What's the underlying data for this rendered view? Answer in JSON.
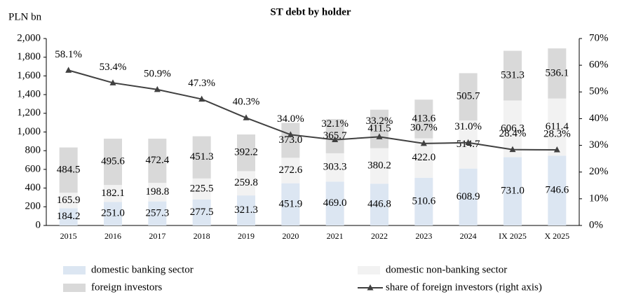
{
  "chart_data": {
    "type": "bar",
    "stacked": true,
    "title": "ST debt by holder",
    "y_label": "PLN bn",
    "categories": [
      "2015",
      "2016",
      "2017",
      "2018",
      "2019",
      "2020",
      "2021",
      "2022",
      "2023",
      "2024",
      "IX 2025",
      "X 2025"
    ],
    "series": [
      {
        "name": "domestic banking sector",
        "type": "bar",
        "color": "#dce6f2",
        "values": [
          184.2,
          251.0,
          257.3,
          277.5,
          321.3,
          451.9,
          469.0,
          446.8,
          510.6,
          608.9,
          731.0,
          746.6
        ],
        "value_labels": [
          "184.2",
          "251.0",
          "257.3",
          "277.5",
          "321.3",
          "451.9",
          "469.0",
          "446.8",
          "510.6",
          "608.9",
          "731.0",
          "746.6"
        ]
      },
      {
        "name": "domestic non-banking sector",
        "type": "bar",
        "color": "#f2f2f2",
        "values": [
          165.9,
          182.1,
          198.8,
          225.5,
          259.8,
          272.6,
          303.3,
          380.2,
          422.0,
          514.7,
          606.3,
          611.4
        ],
        "value_labels": [
          "165.9",
          "182.1",
          "198.8",
          "225.5",
          "259.8",
          "272.6",
          "303.3",
          "380.2",
          "422.0",
          "514.7",
          "606.3",
          "611.4"
        ]
      },
      {
        "name": "foreign investors",
        "type": "bar",
        "color": "#d9d9d9",
        "values": [
          484.5,
          495.6,
          472.4,
          451.3,
          392.2,
          373.0,
          365.7,
          411.5,
          413.6,
          505.7,
          531.3,
          536.1
        ],
        "value_labels": [
          "484.5",
          "495.6",
          "472.4",
          "451.3",
          "392.2",
          "373.0",
          "365.7",
          "411.5",
          "413.6",
          "505.7",
          "531.3",
          "536.1"
        ]
      },
      {
        "name": "share of foreign investors (right axis)",
        "type": "line",
        "axis": "y2",
        "color": "#404040",
        "values": [
          58.1,
          53.4,
          50.9,
          47.3,
          40.3,
          34.0,
          32.1,
          33.2,
          30.7,
          31.0,
          28.4,
          28.3
        ],
        "value_labels": [
          "58.1%",
          "53.4%",
          "50.9%",
          "47.3%",
          "40.3%",
          "34.0%",
          "32.1%",
          "33.2%",
          "30.7%",
          "31.0%",
          "28.4%",
          "28.3%"
        ]
      }
    ],
    "ylim": [
      0,
      2000
    ],
    "yticks": [
      0,
      200,
      400,
      600,
      800,
      {
        "value": 1000,
        "label": "1,000"
      },
      {
        "value": 1200,
        "label": "1,200"
      },
      {
        "value": 1400,
        "label": "1,400"
      },
      {
        "value": 1600,
        "label": "1,600"
      },
      {
        "value": 1800,
        "label": "1,800"
      },
      {
        "value": 2000,
        "label": "2,000"
      }
    ],
    "y2lim": [
      0,
      70
    ],
    "y2ticks": [
      {
        "value": 0,
        "label": "0%"
      },
      {
        "value": 10,
        "label": "10%"
      },
      {
        "value": 20,
        "label": "20%"
      },
      {
        "value": 30,
        "label": "30%"
      },
      {
        "value": 40,
        "label": "40%"
      },
      {
        "value": 50,
        "label": "50%"
      },
      {
        "value": 60,
        "label": "60%"
      },
      {
        "value": 70,
        "label": "70%"
      }
    ],
    "grid": false
  }
}
